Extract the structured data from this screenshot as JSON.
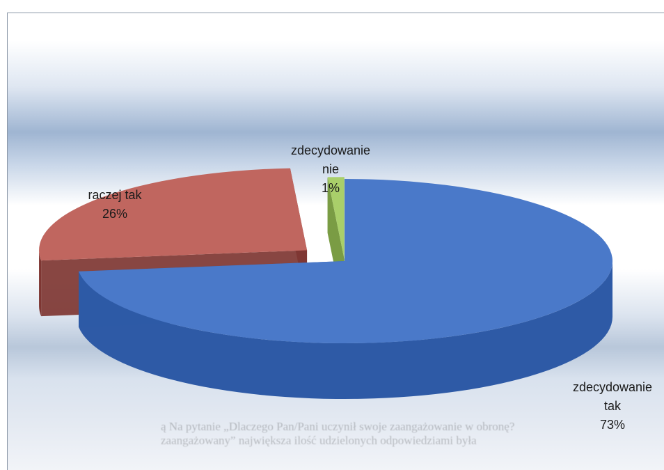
{
  "chart_data": {
    "type": "pie",
    "style": "3d-exploded",
    "title": "",
    "slices": [
      {
        "label": "zdecydowanie tak",
        "value": 73,
        "value_label": "73%",
        "color": "#4a79c9",
        "side_color": "#2e5aa6"
      },
      {
        "label": "raczej tak",
        "value": 26,
        "value_label": "26%",
        "color": "#c0665f",
        "side_color": "#7e3632"
      },
      {
        "label": "zdecydowanie nie",
        "value": 1,
        "value_label": "1%",
        "color": "#a9cf6a",
        "side_color": "#6f9434"
      }
    ],
    "legend": "none"
  },
  "background_text": {
    "line1": "ą Na pytanie „Dlaczego Pan/Pani uczynił swoje zaangażowanie w obronę?",
    "line2": "zaangażowany” największa ilość udzielonych odpowiedziami była"
  }
}
